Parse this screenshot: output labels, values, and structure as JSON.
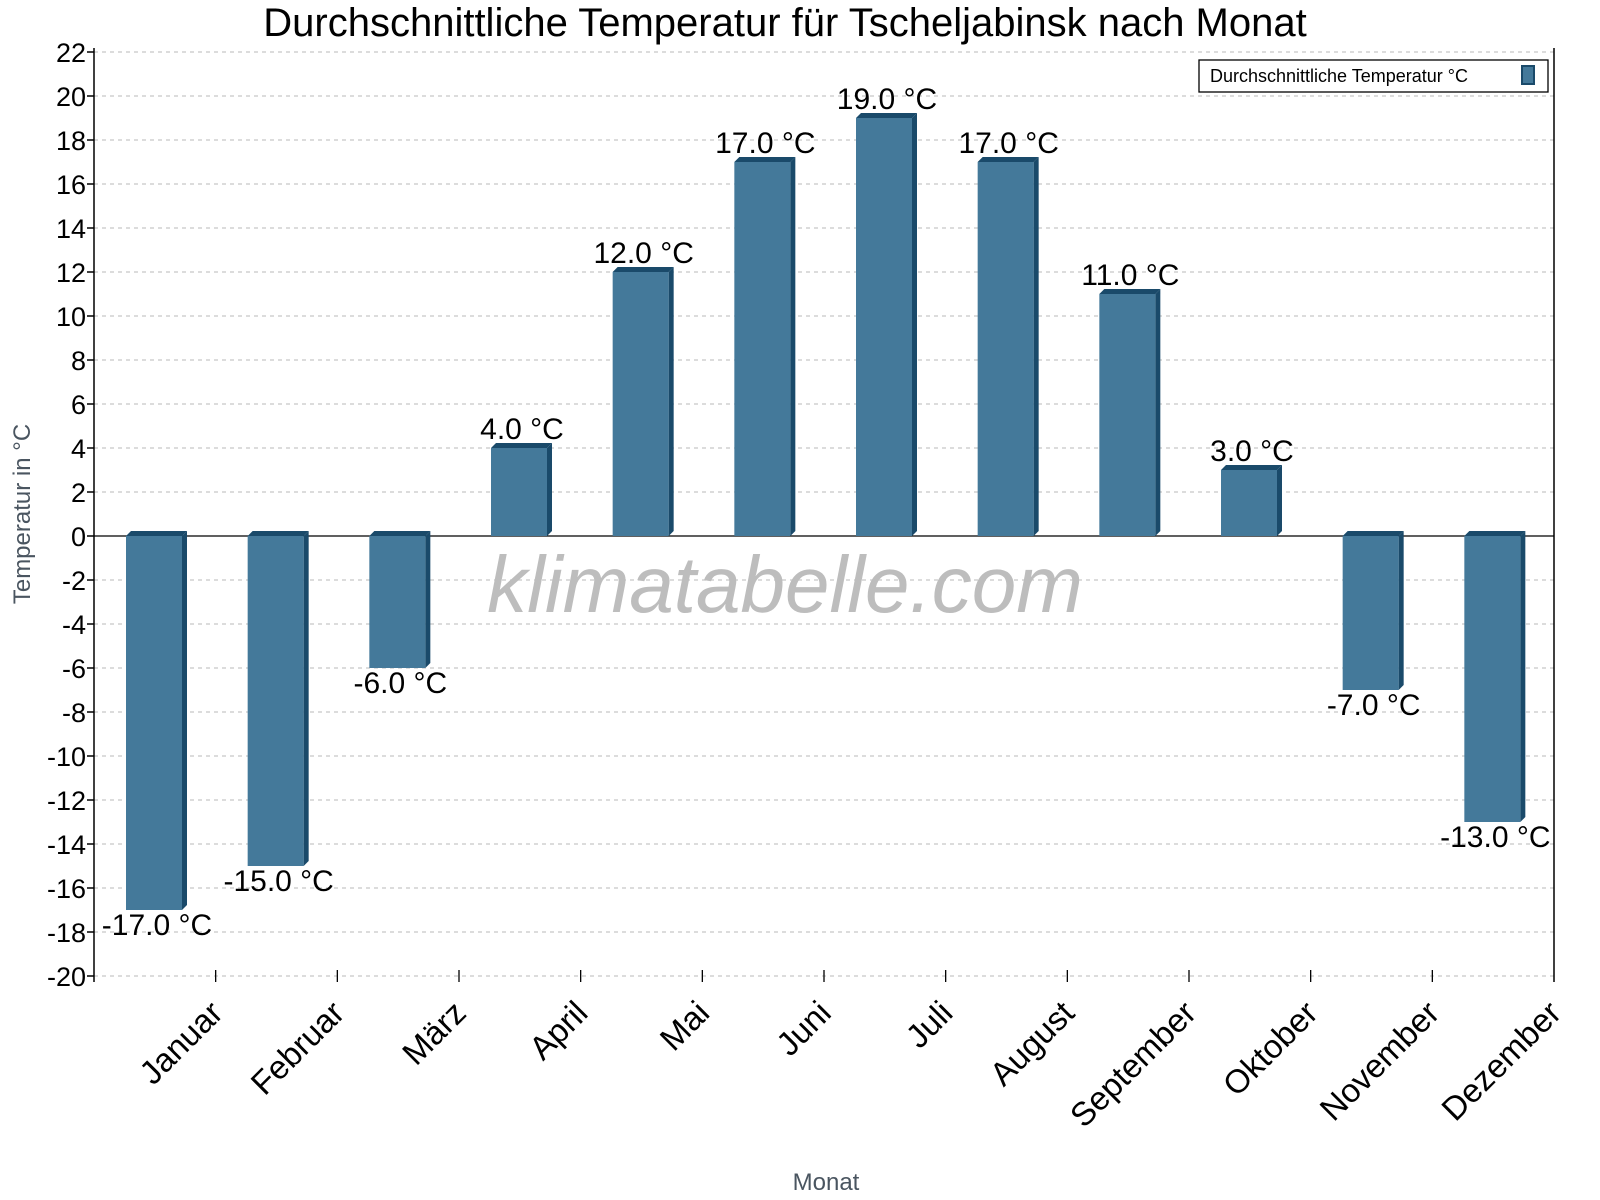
{
  "chart_data": {
    "type": "bar",
    "title": "Durchschnittliche Temperatur für Tscheljabinsk nach Monat",
    "xlabel": "Monat",
    "ylabel": "Temperatur in °C",
    "ylim": [
      -20,
      22
    ],
    "yticks": [
      22,
      20,
      18,
      16,
      14,
      12,
      10,
      8,
      6,
      4,
      2,
      0,
      -2,
      -4,
      -6,
      -8,
      -10,
      -12,
      -14,
      -16,
      -18,
      -20
    ],
    "grid": true,
    "legend_position": "top-right",
    "categories": [
      "Januar",
      "Februar",
      "März",
      "April",
      "Mai",
      "Juni",
      "Juli",
      "August",
      "September",
      "Oktober",
      "November",
      "Dezember"
    ],
    "series": [
      {
        "name": "Durchschnittliche Temperatur °C",
        "values": [
          -17.0,
          -15.0,
          -6.0,
          4.0,
          12.0,
          17.0,
          19.0,
          17.0,
          11.0,
          3.0,
          -7.0,
          -13.0
        ],
        "labels": [
          "-17.0 °C",
          "-15.0 °C",
          "-6.0 °C",
          "4.0 °C",
          "12.0 °C",
          "17.0 °C",
          "19.0 °C",
          "17.0 °C",
          "11.0 °C",
          "3.0 °C",
          "-7.0 °C",
          "-13.0 °C"
        ]
      }
    ]
  },
  "colors": {
    "bar_front": "#44799a",
    "bar_dark": "#1a4a6a",
    "grid": "#c8c8c8",
    "axis": "#000000"
  },
  "watermark": "klimatabelle.com"
}
